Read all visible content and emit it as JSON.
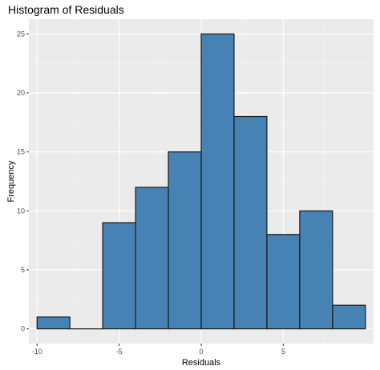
{
  "chart_data": {
    "type": "bar",
    "title": "Histogram of Residuals",
    "xlabel": "Residuals",
    "ylabel": "Frequency",
    "bins": [
      {
        "start": -10.0,
        "end": -8.0,
        "count": 1
      },
      {
        "start": -8.0,
        "end": -6.0,
        "count": 0
      },
      {
        "start": -6.0,
        "end": -4.0,
        "count": 9
      },
      {
        "start": -4.0,
        "end": -2.0,
        "count": 12
      },
      {
        "start": -2.0,
        "end": 0.0,
        "count": 15
      },
      {
        "start": 0.0,
        "end": 2.0,
        "count": 25
      },
      {
        "start": 2.0,
        "end": 4.0,
        "count": 18
      },
      {
        "start": 4.0,
        "end": 6.0,
        "count": 8
      },
      {
        "start": 6.0,
        "end": 8.0,
        "count": 10
      },
      {
        "start": 8.0,
        "end": 10.0,
        "count": 2
      }
    ],
    "xlim": [
      -10.5,
      10.5
    ],
    "ylim": [
      -1.25,
      26.25
    ],
    "x_ticks": [
      -10,
      -5,
      0,
      5
    ],
    "y_ticks": [
      0,
      5,
      10,
      15,
      20,
      25
    ],
    "x_tick_labels": [
      "-10",
      "-5",
      "0",
      "5"
    ],
    "y_tick_labels": [
      "0",
      "5",
      "10",
      "15",
      "20",
      "25"
    ],
    "grid": true,
    "colors": {
      "bar_fill": "#4682b4",
      "bar_stroke": "#1a1a1a",
      "panel": "#ebebeb",
      "grid_major": "#ffffff",
      "grid_minor": "#f5f5f5",
      "tick_text": "#4d4d4d"
    }
  }
}
